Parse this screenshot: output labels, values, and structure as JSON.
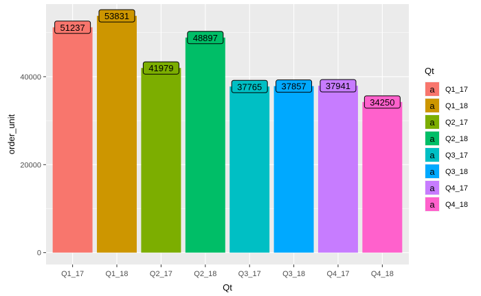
{
  "chart_data": {
    "type": "bar",
    "categories": [
      "Q1_17",
      "Q1_18",
      "Q2_17",
      "Q2_18",
      "Q3_17",
      "Q3_18",
      "Q4_17",
      "Q4_18"
    ],
    "values": [
      51237,
      53831,
      41979,
      48897,
      37765,
      37857,
      37941,
      34250
    ],
    "data_labels": [
      "51237",
      "53831",
      "41979",
      "48897",
      "37765",
      "37857",
      "37941",
      "34250"
    ],
    "colors": [
      "#F8766D",
      "#CD9600",
      "#7CAE00",
      "#00BE67",
      "#00BFC4",
      "#00A9FF",
      "#C77CFF",
      "#FF61CC"
    ],
    "xlabel": "Qt",
    "ylabel": "order_unit",
    "ylim": [
      -2700,
      56500
    ],
    "yticks": [
      0,
      20000,
      40000
    ],
    "ytick_labels": [
      "0",
      "20000",
      "40000"
    ],
    "grid": true,
    "legend": {
      "title": "Qt",
      "position": "right",
      "key_glyph": "a",
      "entries": [
        "Q1_17",
        "Q1_18",
        "Q2_17",
        "Q2_18",
        "Q3_17",
        "Q3_18",
        "Q4_17",
        "Q4_18"
      ]
    },
    "panel_background": "#EBEBEB",
    "grid_color": "#FFFFFF"
  }
}
